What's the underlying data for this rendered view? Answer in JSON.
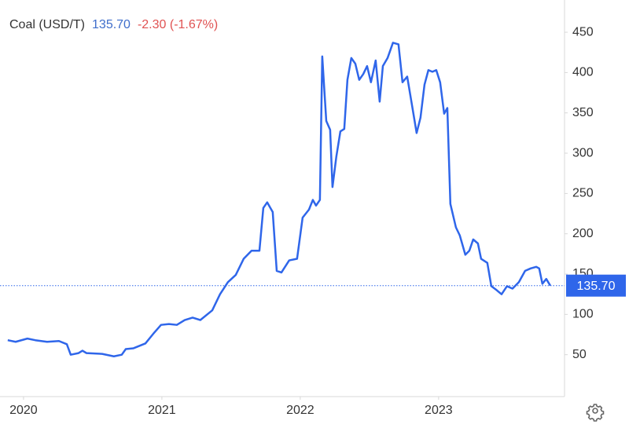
{
  "chart_data": {
    "type": "line",
    "title": "Coal (USD/T)",
    "price": "135.70",
    "change": "-2.30 (-1.67%)",
    "xlim": [
      2019.83,
      2023.91
    ],
    "xticks": [
      2020,
      2021,
      2022,
      2023
    ],
    "ylim": [
      0,
      490
    ],
    "yticks": [
      50,
      100,
      150,
      200,
      250,
      300,
      350,
      400,
      450
    ],
    "grid": false,
    "series": [
      {
        "name": "Coal",
        "color": "#2f66ea",
        "x": [
          2019.886,
          2019.943,
          2020.028,
          2020.085,
          2020.17,
          2020.256,
          2020.313,
          2020.341,
          2020.398,
          2020.426,
          2020.455,
          2020.568,
          2020.653,
          2020.71,
          2020.739,
          2020.795,
          2020.881,
          2020.938,
          2020.994,
          2021.051,
          2021.108,
          2021.165,
          2021.222,
          2021.278,
          2021.364,
          2021.42,
          2021.477,
          2021.534,
          2021.591,
          2021.648,
          2021.705,
          2021.733,
          2021.761,
          2021.801,
          2021.83,
          2021.864,
          2021.92,
          2021.977,
          2022.017,
          2022.063,
          2022.091,
          2022.114,
          2022.142,
          2022.159,
          2022.188,
          2022.216,
          2022.233,
          2022.261,
          2022.29,
          2022.318,
          2022.341,
          2022.369,
          2022.398,
          2022.426,
          2022.455,
          2022.483,
          2022.511,
          2022.545,
          2022.574,
          2022.597,
          2022.631,
          2022.67,
          2022.71,
          2022.739,
          2022.773,
          2022.813,
          2022.841,
          2022.869,
          2022.898,
          2022.926,
          2022.955,
          2022.983,
          2023.011,
          2023.04,
          2023.063,
          2023.085,
          2023.125,
          2023.153,
          2023.193,
          2023.222,
          2023.25,
          2023.284,
          2023.307,
          2023.352,
          2023.381,
          2023.42,
          2023.455,
          2023.494,
          2023.534,
          2023.58,
          2023.625,
          2023.665,
          2023.705,
          2023.727,
          2023.75,
          2023.778,
          2023.807
        ],
        "values": [
          68,
          66,
          70,
          68,
          66,
          67,
          63,
          50,
          52,
          55,
          52,
          51,
          48,
          50,
          57,
          58,
          64,
          76,
          87,
          88,
          87,
          93,
          96,
          93,
          105,
          125,
          140,
          149,
          169,
          179,
          179,
          232,
          239,
          227,
          154,
          152,
          167,
          169,
          220,
          230,
          242,
          235,
          242,
          420,
          340,
          329,
          258,
          296,
          327,
          330,
          391,
          418,
          411,
          391,
          398,
          408,
          388,
          415,
          364,
          408,
          418,
          437,
          435,
          388,
          395,
          354,
          325,
          344,
          385,
          403,
          401,
          403,
          388,
          349,
          356,
          237,
          208,
          198,
          174,
          179,
          193,
          188,
          169,
          164,
          135,
          130,
          125,
          135,
          132,
          140,
          154,
          157,
          159,
          157,
          138,
          144,
          135.7
        ]
      }
    ]
  }
}
